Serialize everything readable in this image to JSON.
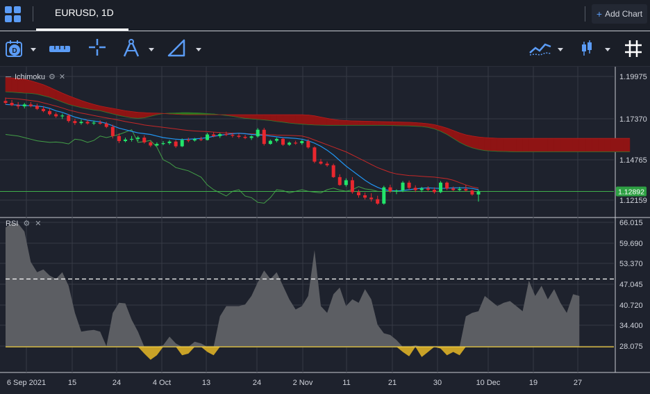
{
  "tab": {
    "title": "EURUSD, 1D"
  },
  "header": {
    "add_chart_label": "Add Chart"
  },
  "icons": {
    "layout": "grid-layout-icon",
    "interval": "interval-d-icon",
    "ruler": "measure-icon",
    "crosshair": "crosshair-icon",
    "compass": "drawing-compass-icon",
    "ruler2": "draw-tools-icon",
    "indicators": "indicators-icon",
    "chart_type": "candlestick-icon",
    "grid": "grid-icon"
  },
  "colors": {
    "accent": "#5b9cf6",
    "up": "#22e56a",
    "down": "#e8272e",
    "kumo_bear": "#8f1414",
    "kumo_bull": "#2d7a1c",
    "price_line": "#3fb04b"
  },
  "panes": {
    "main": {
      "indicator_label": "Ichimoku"
    },
    "rsi": {
      "indicator_label": "RSI"
    }
  },
  "chart_data": [
    {
      "type": "candlestick",
      "title": "EURUSD, 1D",
      "indicator": "Ichimoku",
      "y_ticks": [
        "1.19975",
        "1.17370",
        "1.14765",
        "1.12159"
      ],
      "ylim": [
        1.1155,
        1.2035
      ],
      "last_price": "1.12892",
      "x_ticks": [
        "6 Sep 2021",
        "15",
        "24",
        "4 Oct",
        "13",
        "24",
        "2 Nov",
        "11",
        "21",
        "30",
        "10 Dec",
        "19",
        "27"
      ],
      "candles": [
        [
          1.1862,
          1.1884,
          1.1838,
          1.185
        ],
        [
          1.185,
          1.1868,
          1.183,
          1.1835
        ],
        [
          1.1835,
          1.1855,
          1.1812,
          1.1828
        ],
        [
          1.1828,
          1.185,
          1.1815,
          1.184
        ],
        [
          1.184,
          1.1855,
          1.1822,
          1.183
        ],
        [
          1.183,
          1.1845,
          1.1805,
          1.1812
        ],
        [
          1.1812,
          1.183,
          1.179,
          1.1798
        ],
        [
          1.1798,
          1.1815,
          1.177,
          1.1778
        ],
        [
          1.1778,
          1.179,
          1.1755,
          1.1765
        ],
        [
          1.1765,
          1.1782,
          1.1748,
          1.177
        ],
        [
          1.177,
          1.178,
          1.1725,
          1.1735
        ],
        [
          1.1735,
          1.1748,
          1.171,
          1.1722
        ],
        [
          1.1722,
          1.1745,
          1.1712,
          1.173
        ],
        [
          1.173,
          1.1742,
          1.1712,
          1.172
        ],
        [
          1.172,
          1.1738,
          1.171,
          1.1725
        ],
        [
          1.1725,
          1.174,
          1.1712,
          1.1718
        ],
        [
          1.1718,
          1.173,
          1.169,
          1.1698
        ],
        [
          1.1698,
          1.1712,
          1.1625,
          1.164
        ],
        [
          1.164,
          1.1658,
          1.1595,
          1.1608
        ],
        [
          1.1608,
          1.163,
          1.16,
          1.1618
        ],
        [
          1.1618,
          1.164,
          1.1605,
          1.1622
        ],
        [
          1.1622,
          1.164,
          1.1608,
          1.163
        ],
        [
          1.163,
          1.1645,
          1.1592,
          1.16
        ],
        [
          1.16,
          1.161,
          1.157,
          1.158
        ],
        [
          1.158,
          1.16,
          1.1575,
          1.159
        ],
        [
          1.159,
          1.1608,
          1.1582,
          1.1595
        ],
        [
          1.1595,
          1.1615,
          1.1585,
          1.1605
        ],
        [
          1.1605,
          1.1615,
          1.1565,
          1.1575
        ],
        [
          1.1575,
          1.1625,
          1.157,
          1.1615
        ],
        [
          1.1615,
          1.163,
          1.16,
          1.1612
        ],
        [
          1.1612,
          1.1628,
          1.1605,
          1.162
        ],
        [
          1.162,
          1.1635,
          1.1608,
          1.1615
        ],
        [
          1.1615,
          1.166,
          1.1612,
          1.165
        ],
        [
          1.165,
          1.1665,
          1.1632,
          1.164
        ],
        [
          1.164,
          1.166,
          1.1628,
          1.1652
        ],
        [
          1.1652,
          1.1668,
          1.164,
          1.1648
        ],
        [
          1.1648,
          1.166,
          1.163,
          1.1642
        ],
        [
          1.1642,
          1.1655,
          1.1625,
          1.1635
        ],
        [
          1.1635,
          1.1648,
          1.162,
          1.1628
        ],
        [
          1.1628,
          1.1645,
          1.1615,
          1.1638
        ],
        [
          1.1638,
          1.169,
          1.163,
          1.168
        ],
        [
          1.168,
          1.1692,
          1.158,
          1.159
        ],
        [
          1.159,
          1.1618,
          1.1585,
          1.161
        ],
        [
          1.161,
          1.163,
          1.16,
          1.1622
        ],
        [
          1.1622,
          1.163,
          1.1578,
          1.1585
        ],
        [
          1.1585,
          1.1605,
          1.1578,
          1.1598
        ],
        [
          1.1598,
          1.161,
          1.1585,
          1.1595
        ],
        [
          1.1595,
          1.1615,
          1.1585,
          1.1608
        ],
        [
          1.1608,
          1.162,
          1.156,
          1.1568
        ],
        [
          1.1568,
          1.1575,
          1.1468,
          1.1478
        ],
        [
          1.1478,
          1.1495,
          1.1458,
          1.1465
        ],
        [
          1.1465,
          1.1478,
          1.1445,
          1.1455
        ],
        [
          1.1455,
          1.1465,
          1.1375,
          1.138
        ],
        [
          1.138,
          1.1398,
          1.1325,
          1.133
        ],
        [
          1.133,
          1.1372,
          1.132,
          1.136
        ],
        [
          1.136,
          1.138,
          1.1275,
          1.1285
        ],
        [
          1.1285,
          1.13,
          1.125,
          1.1265
        ],
        [
          1.1265,
          1.1282,
          1.1238,
          1.125
        ],
        [
          1.125,
          1.1278,
          1.1225,
          1.124
        ],
        [
          1.124,
          1.1262,
          1.1205,
          1.1212
        ],
        [
          1.1212,
          1.1325,
          1.1205,
          1.1315
        ],
        [
          1.1315,
          1.1332,
          1.128,
          1.129
        ],
        [
          1.129,
          1.1302,
          1.1272,
          1.1295
        ],
        [
          1.1295,
          1.1355,
          1.1285,
          1.1345
        ],
        [
          1.1345,
          1.1358,
          1.13,
          1.1312
        ],
        [
          1.1312,
          1.1328,
          1.1285,
          1.1298
        ],
        [
          1.1298,
          1.1318,
          1.1285,
          1.1308
        ],
        [
          1.1308,
          1.1322,
          1.129,
          1.13
        ],
        [
          1.13,
          1.1315,
          1.1275,
          1.1285
        ],
        [
          1.1285,
          1.1355,
          1.1278,
          1.1345
        ],
        [
          1.1345,
          1.1352,
          1.1298,
          1.1308
        ],
        [
          1.1308,
          1.132,
          1.129,
          1.1298
        ],
        [
          1.1298,
          1.1318,
          1.1292,
          1.1305
        ],
        [
          1.1305,
          1.133,
          1.1288,
          1.1295
        ],
        [
          1.1295,
          1.13,
          1.1262,
          1.127
        ],
        [
          1.127,
          1.13,
          1.1225,
          1.1289
        ]
      ],
      "tenkan": [
        1.184,
        1.1838,
        1.1836,
        1.1834,
        1.1832,
        1.183,
        1.1825,
        1.1815,
        1.18,
        1.179,
        1.1775,
        1.176,
        1.175,
        1.174,
        1.1735,
        1.173,
        1.172,
        1.1705,
        1.169,
        1.168,
        1.167,
        1.166,
        1.1655,
        1.165,
        1.164,
        1.163,
        1.1625,
        1.162,
        1.1618,
        1.162,
        1.1622,
        1.1625,
        1.163,
        1.1638,
        1.1645,
        1.165,
        1.1655,
        1.1658,
        1.1655,
        1.165,
        1.1648,
        1.1645,
        1.164,
        1.1635,
        1.163,
        1.1628,
        1.1625,
        1.162,
        1.161,
        1.1595,
        1.1575,
        1.155,
        1.152,
        1.1485,
        1.145,
        1.142,
        1.139,
        1.136,
        1.1335,
        1.1315,
        1.13,
        1.1295,
        1.1292,
        1.1295,
        1.13,
        1.1305,
        1.131,
        1.1312,
        1.131,
        1.1308,
        1.131,
        1.1312,
        1.1312,
        1.1312,
        1.1308,
        1.13
      ],
      "kijun": [
        1.188,
        1.1878,
        1.1875,
        1.187,
        1.1865,
        1.186,
        1.185,
        1.184,
        1.183,
        1.1818,
        1.1805,
        1.1795,
        1.1785,
        1.1778,
        1.177,
        1.1762,
        1.1755,
        1.1748,
        1.174,
        1.1732,
        1.1725,
        1.1718,
        1.171,
        1.1705,
        1.17,
        1.1695,
        1.169,
        1.1685,
        1.168,
        1.1675,
        1.1672,
        1.167,
        1.1668,
        1.1665,
        1.1662,
        1.166,
        1.1658,
        1.1656,
        1.1655,
        1.1654,
        1.1652,
        1.165,
        1.1648,
        1.1646,
        1.1645,
        1.1644,
        1.1642,
        1.164,
        1.163,
        1.1615,
        1.16,
        1.1585,
        1.157,
        1.1555,
        1.154,
        1.152,
        1.15,
        1.148,
        1.146,
        1.144,
        1.1425,
        1.141,
        1.14,
        1.1395,
        1.139,
        1.1388,
        1.1385,
        1.1382,
        1.138,
        1.1375,
        1.137,
        1.136,
        1.1345,
        1.133,
        1.1318,
        1.131
      ],
      "chikou": [
        1.165,
        1.1645,
        1.164,
        1.163,
        1.162,
        1.161,
        1.1605,
        1.16,
        1.1602,
        1.1598,
        1.159,
        1.162,
        1.1615,
        1.16,
        1.1612,
        1.164,
        1.163,
        1.164,
        1.165,
        1.1665,
        1.168,
        1.16,
        1.1605,
        1.1612,
        1.157,
        1.149,
        1.147,
        1.144,
        1.143,
        1.142,
        1.14,
        1.138,
        1.133,
        1.13,
        1.128,
        1.126,
        1.129,
        1.13,
        1.126,
        1.125,
        1.122,
        1.1215,
        1.125,
        1.13,
        1.1295,
        1.128,
        1.129,
        1.13,
        1.129,
        1.1285,
        1.128,
        1.13,
        1.131,
        1.1298,
        1.129,
        1.13,
        1.132,
        1.1305,
        1.13,
        1.129
      ],
      "span_a": [
        1.192,
        1.1918,
        1.1915,
        1.1912,
        1.191,
        1.1905,
        1.1895,
        1.1885,
        1.187,
        1.1855,
        1.184,
        1.183,
        1.182,
        1.1812,
        1.1805,
        1.18,
        1.179,
        1.178,
        1.177,
        1.1762,
        1.1755,
        1.1752,
        1.1755,
        1.1765,
        1.1775,
        1.1782,
        1.1785,
        1.1786,
        1.1788,
        1.1788,
        1.1787,
        1.1785,
        1.1782,
        1.178,
        1.1775,
        1.177,
        1.1765,
        1.1758,
        1.1752,
        1.1748,
        1.1745,
        1.1742,
        1.1738,
        1.1732,
        1.1728,
        1.1722,
        1.1718,
        1.1715,
        1.1712,
        1.171,
        1.1709,
        1.1708,
        1.1708,
        1.1708,
        1.1708,
        1.1708,
        1.1708,
        1.1708,
        1.1708,
        1.1708,
        1.1708,
        1.1707,
        1.1706,
        1.1705,
        1.1704,
        1.1702,
        1.17,
        1.1695,
        1.1685,
        1.167,
        1.165,
        1.1625,
        1.16,
        1.158,
        1.1565,
        1.1555,
        1.1548,
        1.1545,
        1.1543,
        1.1542,
        1.1541,
        1.154,
        1.154,
        1.154,
        1.154,
        1.154,
        1.154,
        1.154,
        1.154,
        1.154,
        1.154,
        1.154,
        1.154,
        1.154,
        1.154,
        1.154,
        1.154,
        1.154,
        1.154,
        1.154
      ],
      "span_b": [
        1.201,
        1.2008,
        1.2005,
        1.2,
        1.199,
        1.1978,
        1.1965,
        1.1948,
        1.193,
        1.1912,
        1.1895,
        1.188,
        1.1865,
        1.1852,
        1.184,
        1.183,
        1.1822,
        1.1815,
        1.1808,
        1.18,
        1.1795,
        1.179,
        1.1788,
        1.1786,
        1.1785,
        1.1783,
        1.178,
        1.1778,
        1.1776,
        1.1775,
        1.1775,
        1.1775,
        1.1775,
        1.1775,
        1.1775,
        1.1775,
        1.1775,
        1.1775,
        1.1775,
        1.1775,
        1.1775,
        1.1775,
        1.1775,
        1.1775,
        1.1775,
        1.1775,
        1.1775,
        1.1775,
        1.1773,
        1.1768,
        1.176,
        1.1752,
        1.1745,
        1.174,
        1.1738,
        1.1736,
        1.1735,
        1.1734,
        1.1733,
        1.1732,
        1.1731,
        1.173,
        1.1729,
        1.1728,
        1.1727,
        1.1725,
        1.1722,
        1.1718,
        1.1712,
        1.1702,
        1.169,
        1.1675,
        1.166,
        1.1648,
        1.164,
        1.1634,
        1.163,
        1.1628,
        1.1626,
        1.1625,
        1.1625,
        1.1625,
        1.1625,
        1.1625,
        1.1625,
        1.1625,
        1.1625,
        1.1625,
        1.1625,
        1.1625,
        1.1625,
        1.1625,
        1.1625,
        1.1625,
        1.1625,
        1.1625,
        1.1625,
        1.1625,
        1.1625,
        1.1625
      ]
    },
    {
      "type": "area",
      "title": "RSI",
      "y_ticks": [
        "66.015",
        "59.690",
        "53.370",
        "47.045",
        "40.720",
        "34.400",
        "28.075"
      ],
      "ylim": [
        24.5,
        67.5
      ],
      "upper_band": 50,
      "lower_band": 30,
      "values": [
        65.2,
        66.5,
        66.3,
        64.0,
        55.0,
        52.0,
        52.8,
        51.0,
        50.0,
        52.0,
        48.0,
        40.0,
        34.5,
        34.8,
        35.0,
        34.5,
        30.2,
        40.0,
        43.0,
        42.8,
        38.0,
        34.5,
        28.0,
        26.2,
        27.5,
        30.5,
        33.0,
        31.0,
        27.5,
        28.0,
        31.5,
        31.0,
        28.5,
        27.5,
        39.0,
        42.0,
        42.0,
        42.0,
        42.5,
        45.0,
        49.0,
        52.5,
        50.0,
        52.0,
        48.0,
        44.0,
        41.0,
        42.0,
        45.0,
        58.5,
        42.0,
        40.0,
        45.5,
        47.5,
        42.0,
        44.0,
        43.0,
        47.0,
        44.0,
        36.5,
        34.0,
        33.5,
        32.0,
        28.5,
        27.2,
        30.5,
        27.0,
        28.5,
        30.0,
        29.5,
        27.5,
        28.5,
        27.5,
        39.0,
        40.0,
        40.5,
        45.0,
        43.5,
        42.0,
        43.0,
        43.5,
        42.0,
        40.5,
        49.5,
        45.0,
        48.0,
        44.0,
        47.0,
        43.0,
        40.0,
        45.5,
        45.0
      ]
    }
  ]
}
